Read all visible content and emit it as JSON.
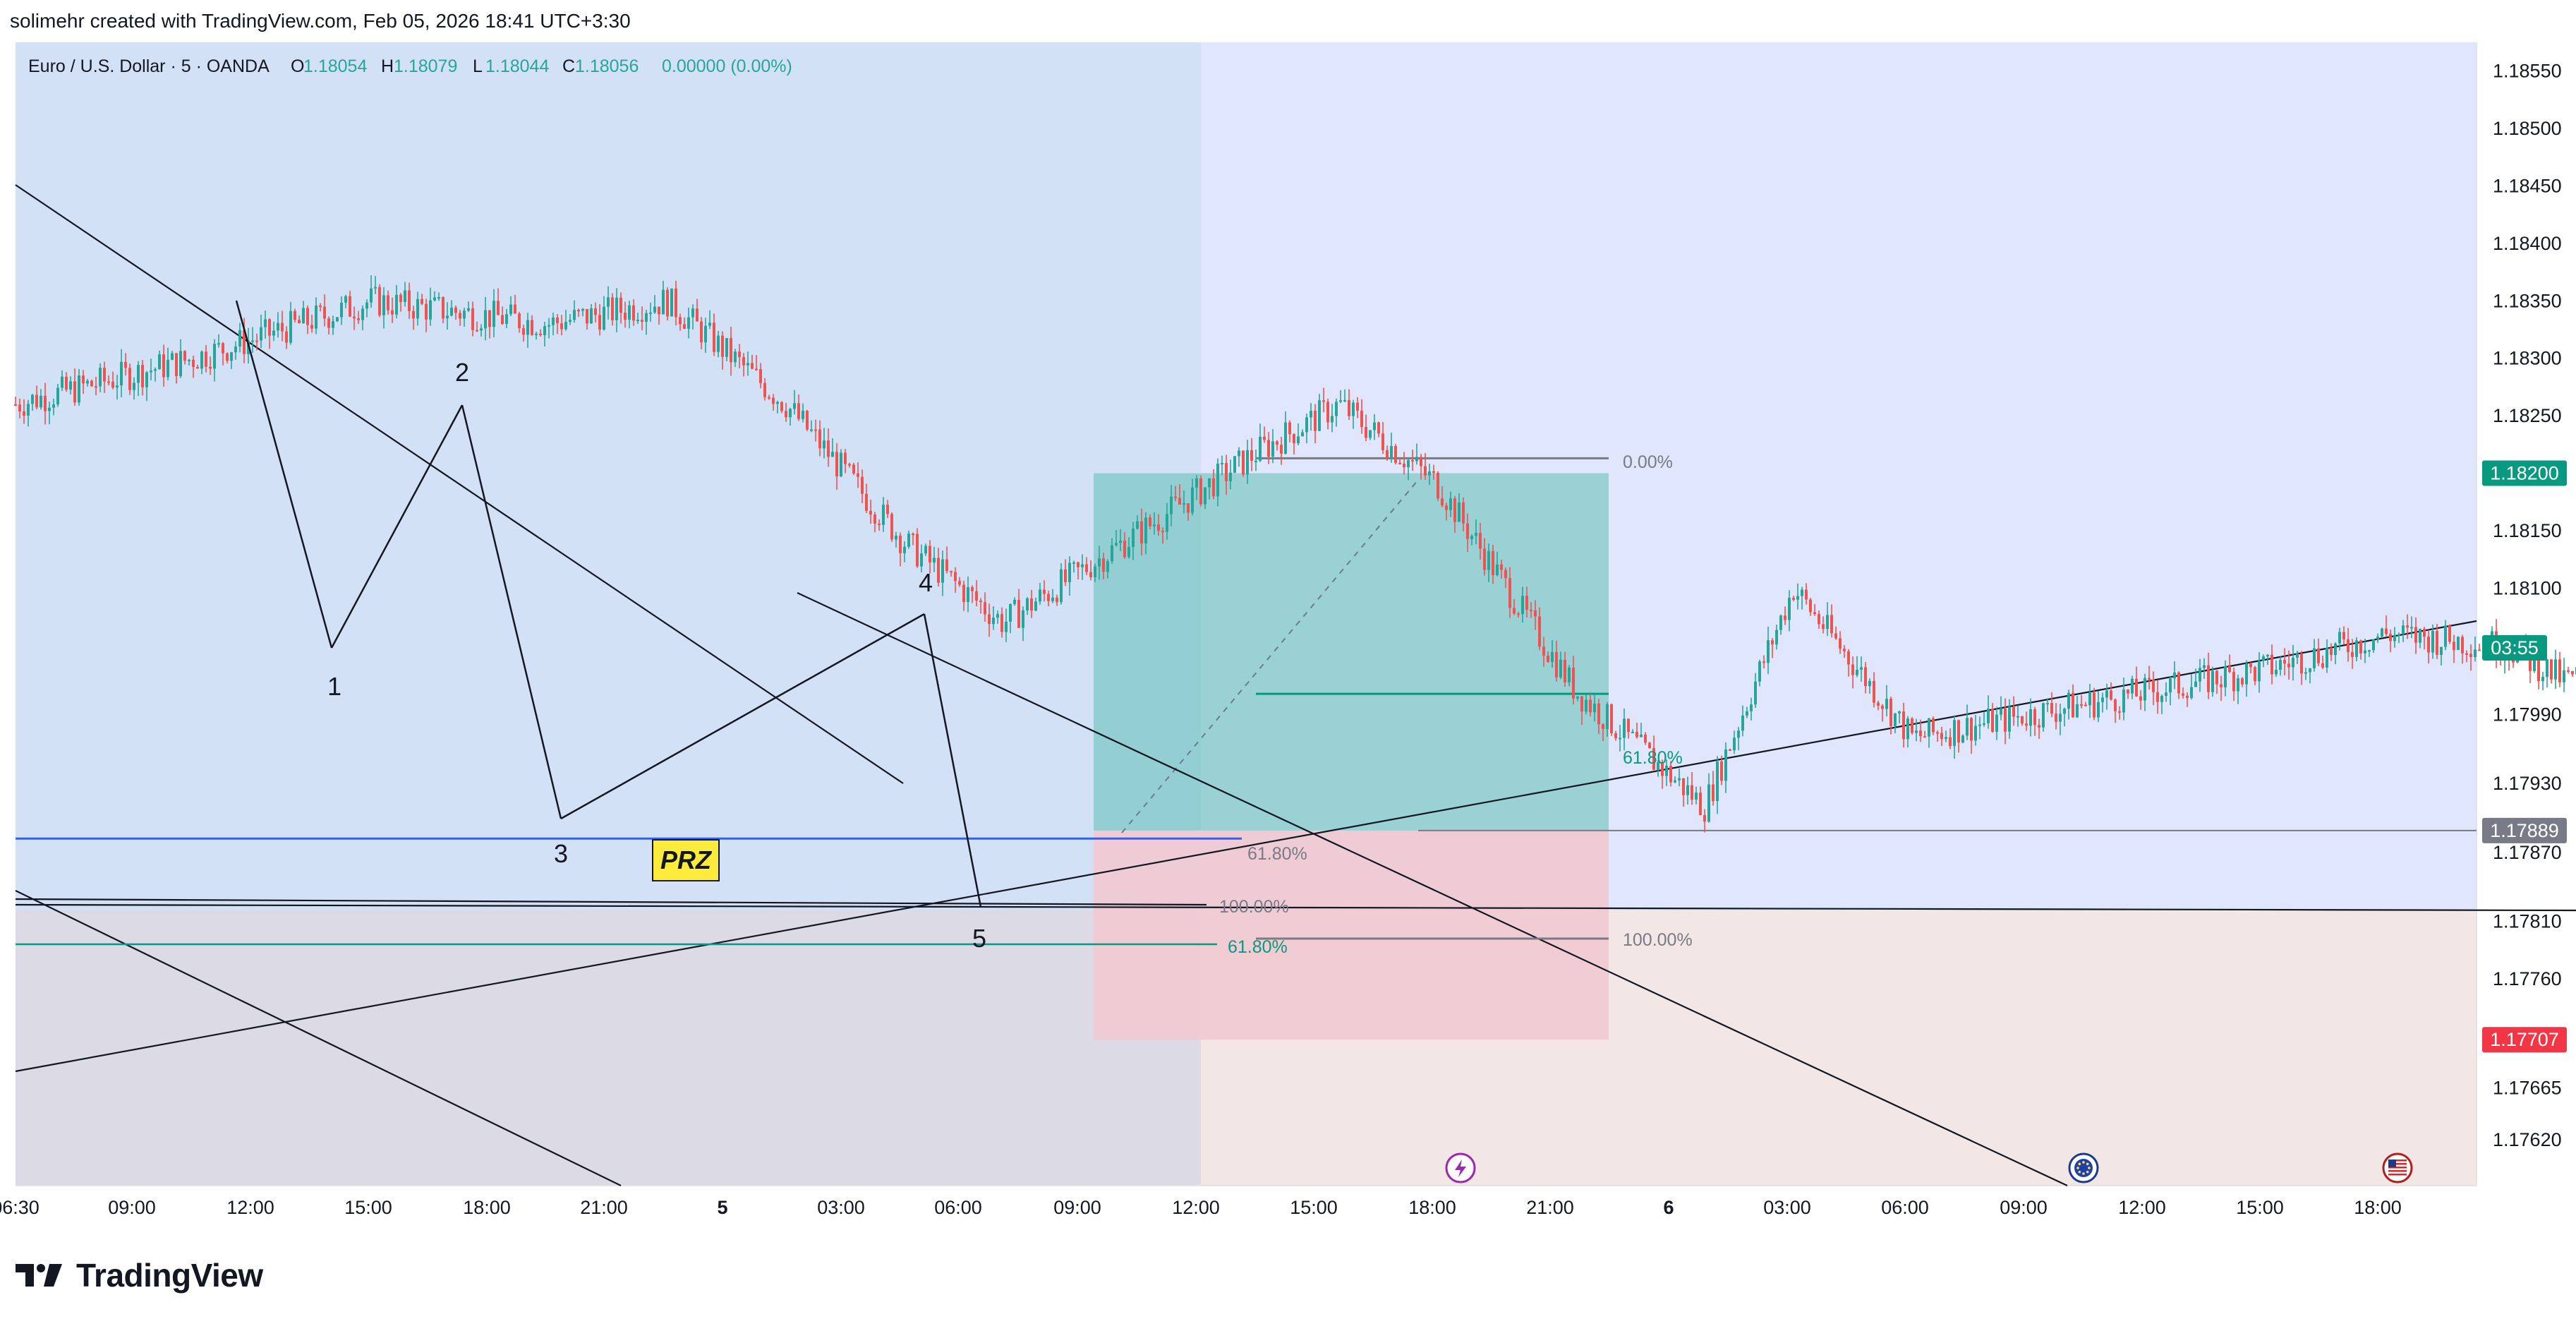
{
  "header": {
    "text": "solimehr created with TradingView.com, Feb 05, 2026 18:41 UTC+3:30"
  },
  "brand": {
    "name": "TradingView"
  },
  "symbol_bar": {
    "title": "Euro / U.S. Dollar · 5 · OANDA",
    "open_label": "O",
    "open": "1.18054",
    "high_label": "H",
    "high": "1.18079",
    "low_label": "L",
    "low": "1.18044",
    "close_label": "C",
    "close": "1.18056",
    "change": "0.00000 (0.00%)"
  },
  "colors": {
    "up": "#26a69a",
    "down": "#ef5350",
    "background_blue": "#d3e1f7",
    "target_zone": "#5fbfb6",
    "stop_zone": "#f1c9d0",
    "prz_line": "#2962ff",
    "prz_label_bg": "#ffeb3b",
    "fib_green": "#089981",
    "last_price_tag": "#089981",
    "stop_tag": "#f23645",
    "marker_tag": "#787b86"
  },
  "chart_data": {
    "type": "candlestick",
    "symbol": "Euro / U.S. Dollar",
    "interval": "5",
    "ylim": [
      1.1758,
      1.18575
    ],
    "y_ticks": [
      "1.18550",
      "1.18500",
      "1.18450",
      "1.18400",
      "1.18350",
      "1.18300",
      "1.18250",
      "1.18150",
      "1.18100",
      "1.17990",
      "1.17930",
      "1.17870",
      "1.17810",
      "1.17760",
      "1.17665",
      "1.17620"
    ],
    "x_ticks": [
      "06:30",
      "09:00",
      "12:00",
      "15:00",
      "18:00",
      "21:00",
      "5",
      "03:00",
      "06:00",
      "09:00",
      "12:00",
      "15:00",
      "18:00",
      "21:00",
      "6",
      "03:00",
      "06:00",
      "09:00",
      "12:00",
      "15:00",
      "18:00"
    ],
    "price_path": [
      {
        "t": "04 06:30",
        "p": 1.1826
      },
      {
        "t": "04 08:00",
        "p": 1.183
      },
      {
        "t": "04 09:30",
        "p": 1.1835
      },
      {
        "t": "04 11:00",
        "p": 1.1833
      },
      {
        "t": "04 12:00",
        "p": 1.1835
      },
      {
        "t": "04 13:00",
        "p": 1.1826
      },
      {
        "t": "04 14:00",
        "p": 1.1814
      },
      {
        "t": "04 14:50",
        "p": 1.1807
      },
      {
        "t": "04 16:00",
        "p": 1.1815
      },
      {
        "t": "04 17:00",
        "p": 1.1822
      },
      {
        "t": "04 17:40",
        "p": 1.1826
      },
      {
        "t": "04 18:30",
        "p": 1.1819
      },
      {
        "t": "04 19:40",
        "p": 1.1801
      },
      {
        "t": "04 20:45",
        "p": 1.1791
      },
      {
        "t": "04 21:30",
        "p": 1.181
      },
      {
        "t": "04 22:30",
        "p": 1.1797
      },
      {
        "t": "05 00:00",
        "p": 1.18
      },
      {
        "t": "05 01:30",
        "p": 1.1803
      },
      {
        "t": "05 02:30",
        "p": 1.1806
      },
      {
        "t": "05 03:30",
        "p": 1.1805
      },
      {
        "t": "05 04:00",
        "p": 1.1802
      },
      {
        "t": "05 05:00",
        "p": 1.1805
      },
      {
        "t": "05 05:40",
        "p": 1.1808
      },
      {
        "t": "05 06:10",
        "p": 1.1796
      },
      {
        "t": "05 06:35",
        "p": 1.1788
      },
      {
        "t": "05 07:05",
        "p": 1.1783
      },
      {
        "t": "05 08:00",
        "p": 1.1788
      },
      {
        "t": "05 09:00",
        "p": 1.179
      },
      {
        "t": "05 09:50",
        "p": 1.1786
      },
      {
        "t": "05 10:20",
        "p": 1.1792
      },
      {
        "t": "05 11:00",
        "p": 1.18
      },
      {
        "t": "05 11:30",
        "p": 1.1806
      },
      {
        "t": "05 12:00",
        "p": 1.1803
      },
      {
        "t": "05 12:40",
        "p": 1.1799
      },
      {
        "t": "05 13:10",
        "p": 1.179
      },
      {
        "t": "05 13:40",
        "p": 1.1783
      },
      {
        "t": "05 14:00",
        "p": 1.1784
      },
      {
        "t": "05 15:00",
        "p": 1.1788
      },
      {
        "t": "05 15:40",
        "p": 1.1795
      },
      {
        "t": "05 16:10",
        "p": 1.179
      },
      {
        "t": "05 16:30",
        "p": 1.1795
      },
      {
        "t": "05 17:00",
        "p": 1.1805
      },
      {
        "t": "05 17:20",
        "p": 1.181
      },
      {
        "t": "05 17:45",
        "p": 1.1816
      },
      {
        "t": "05 18:00",
        "p": 1.182
      },
      {
        "t": "05 18:15",
        "p": 1.1814
      },
      {
        "t": "05 18:30",
        "p": 1.1806
      },
      {
        "t": "05 18:41",
        "p": 1.18056
      }
    ],
    "wave_labels": [
      {
        "label": "1",
        "t": "04 14:50",
        "p": 1.1807
      },
      {
        "label": "2",
        "t": "04 17:40",
        "p": 1.1826
      },
      {
        "label": "3",
        "t": "04 20:45",
        "p": 1.1791
      },
      {
        "label": "4",
        "t": "05 05:40",
        "p": 1.1808
      },
      {
        "label": "5",
        "t": "05 06:35",
        "p": 1.1783
      }
    ],
    "prz": {
      "label": "PRZ",
      "price": 1.17882
    },
    "horizontal_lines": [
      1.1785,
      1.17835
    ],
    "position": {
      "type": "long",
      "entry": 1.17889,
      "target": 1.182,
      "stop": 1.17707
    },
    "fib_levels": [
      {
        "label": "0.00%",
        "price": 1.18213
      },
      {
        "label": "61.80%",
        "price": 1.18008
      },
      {
        "label": "100.00%",
        "price": 1.17812
      },
      {
        "label": "100.00%",
        "price": 1.17838
      },
      {
        "label": "61.80%",
        "price": 1.17807
      },
      {
        "label": "61.80%",
        "price": 1.17877
      }
    ],
    "price_tags": [
      {
        "label": "1.18200",
        "price": 1.182
      },
      {
        "label": "03:55",
        "price": 1.18056
      },
      {
        "label": "1.17889",
        "price": 1.17889
      },
      {
        "label": "1.17707",
        "price": 1.17707
      }
    ],
    "time_markers": [
      "lightning-icon",
      "eu-flag-icon",
      "us-flag-icon"
    ]
  }
}
